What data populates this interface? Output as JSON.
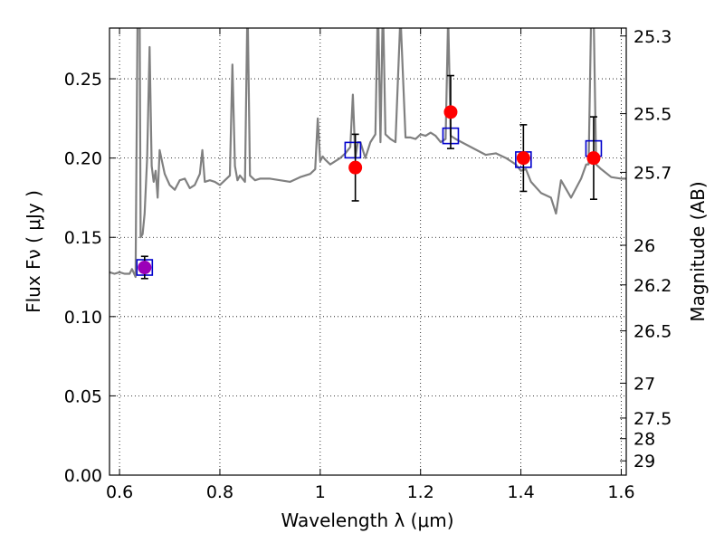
{
  "chart_data": {
    "type": "scatter",
    "xlabel": "Wavelength  λ (μm)",
    "ylabel": "Flux  Fν  ( μJy )",
    "y2label": "Magnitude (AB)",
    "xlim": [
      0.58,
      1.61
    ],
    "ylim": [
      0.0,
      0.282
    ],
    "grid": true,
    "x_ticks": [
      0.6,
      0.8,
      1.0,
      1.2,
      1.4,
      1.6
    ],
    "x_tick_labels": [
      "0.6",
      "0.8",
      "1",
      "1.2",
      "1.4",
      "1.6"
    ],
    "y_ticks": [
      0.0,
      0.05,
      0.1,
      0.15,
      0.2,
      0.25
    ],
    "y_tick_labels": [
      "0.00",
      "0.05",
      "0.10",
      "0.15",
      "0.20",
      "0.25"
    ],
    "mag_ticks": [
      {
        "label": "25.3",
        "flux": 0.277
      },
      {
        "label": "25.5",
        "flux": 0.228
      },
      {
        "label": "25.7",
        "flux": 0.191
      },
      {
        "label": "26",
        "flux": 0.145
      },
      {
        "label": "26.2",
        "flux": 0.12
      },
      {
        "label": "26.5",
        "flux": 0.091
      },
      {
        "label": "27",
        "flux": 0.058
      },
      {
        "label": "27.5",
        "flux": 0.036
      },
      {
        "label": "28",
        "flux": 0.023
      },
      {
        "label": "29",
        "flux": 0.009
      }
    ],
    "series": [
      {
        "kind": "model_spectrum",
        "color": "#808080",
        "x": [
          0.58,
          0.59,
          0.6,
          0.61,
          0.62,
          0.625,
          0.632,
          0.636,
          0.64,
          0.642,
          0.646,
          0.65,
          0.655,
          0.66,
          0.664,
          0.668,
          0.672,
          0.676,
          0.68,
          0.69,
          0.7,
          0.71,
          0.72,
          0.73,
          0.74,
          0.75,
          0.76,
          0.765,
          0.77,
          0.78,
          0.79,
          0.8,
          0.82,
          0.825,
          0.83,
          0.835,
          0.84,
          0.85,
          0.855,
          0.86,
          0.87,
          0.88,
          0.9,
          0.92,
          0.94,
          0.96,
          0.98,
          0.99,
          0.995,
          1.0,
          1.005,
          1.01,
          1.02,
          1.04,
          1.05,
          1.06,
          1.065,
          1.07,
          1.075,
          1.08,
          1.09,
          1.1,
          1.11,
          1.115,
          1.12,
          1.125,
          1.13,
          1.14,
          1.15,
          1.16,
          1.17,
          1.18,
          1.19,
          1.2,
          1.21,
          1.22,
          1.23,
          1.24,
          1.25,
          1.255,
          1.26,
          1.27,
          1.3,
          1.33,
          1.35,
          1.37,
          1.39,
          1.4,
          1.41,
          1.42,
          1.44,
          1.46,
          1.47,
          1.48,
          1.5,
          1.52,
          1.53,
          1.535,
          1.54,
          1.545,
          1.55,
          1.56,
          1.58,
          1.6,
          1.61
        ],
        "y": [
          0.128,
          0.127,
          0.128,
          0.127,
          0.127,
          0.13,
          0.125,
          0.29,
          0.29,
          0.15,
          0.152,
          0.165,
          0.2,
          0.27,
          0.195,
          0.185,
          0.192,
          0.175,
          0.205,
          0.19,
          0.183,
          0.18,
          0.186,
          0.187,
          0.181,
          0.183,
          0.19,
          0.205,
          0.185,
          0.186,
          0.185,
          0.183,
          0.189,
          0.259,
          0.195,
          0.186,
          0.189,
          0.185,
          0.3,
          0.189,
          0.186,
          0.187,
          0.187,
          0.186,
          0.185,
          0.188,
          0.19,
          0.193,
          0.225,
          0.198,
          0.201,
          0.199,
          0.196,
          0.2,
          0.203,
          0.207,
          0.24,
          0.2,
          0.21,
          0.21,
          0.2,
          0.21,
          0.215,
          0.3,
          0.21,
          0.3,
          0.215,
          0.212,
          0.21,
          0.29,
          0.213,
          0.213,
          0.212,
          0.215,
          0.214,
          0.216,
          0.214,
          0.21,
          0.212,
          0.29,
          0.214,
          0.212,
          0.207,
          0.202,
          0.203,
          0.2,
          0.196,
          0.192,
          0.193,
          0.185,
          0.178,
          0.175,
          0.165,
          0.186,
          0.175,
          0.187,
          0.196,
          0.196,
          0.29,
          0.29,
          0.196,
          0.193,
          0.188,
          0.187,
          0.187
        ]
      },
      {
        "kind": "model_photometry",
        "marker": "open-square",
        "color": "#0000cc",
        "x": [
          0.65,
          1.065,
          1.26,
          1.405,
          1.545
        ],
        "y": [
          0.131,
          0.205,
          0.214,
          0.199,
          0.206
        ]
      },
      {
        "kind": "observed_photometry",
        "marker": "filled-circle",
        "color": "#ff0000",
        "x": [
          0.65,
          1.07,
          1.26,
          1.405,
          1.545
        ],
        "y": [
          0.131,
          0.194,
          0.229,
          0.2,
          0.2
        ],
        "yerr": [
          0.007,
          0.021,
          0.023,
          0.021,
          0.026
        ],
        "first_point_color": "#9b00b8"
      }
    ]
  }
}
